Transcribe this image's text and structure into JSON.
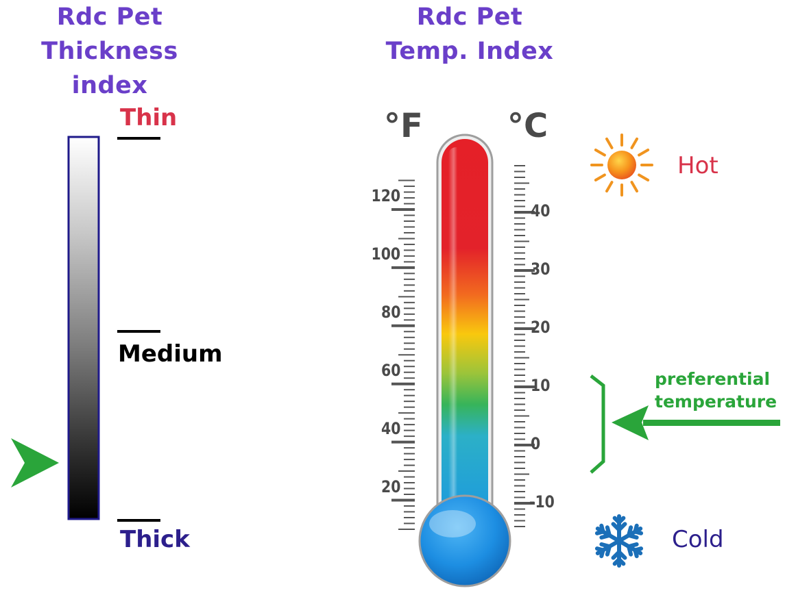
{
  "thickness": {
    "title_line1": "Rdc Pet",
    "title_line2": "Thickness index",
    "labels": {
      "thin": "Thin",
      "medium": "Medium",
      "thick": "Thick"
    },
    "indicator_level": 0.15
  },
  "temperature": {
    "title_line1": "Rdc Pet",
    "title_line2": "Temp. Index",
    "fahrenheit_unit": "°F",
    "celsius_unit": "°C",
    "fahrenheit_ticks": [
      "120",
      "100",
      "80",
      "60",
      "40",
      "20"
    ],
    "celsius_ticks": [
      "40",
      "30",
      "20",
      "10",
      "0",
      "-10"
    ],
    "hot_label": "Hot",
    "cold_label": "Cold",
    "preferential_line1": "preferential",
    "preferential_line2": "temperature",
    "icons": {
      "hot": "sun-icon",
      "cold": "snowflake-icon"
    }
  },
  "colors": {
    "title": "#6a3fc9",
    "thin": "#d8334a",
    "thick_and_cold": "#2c1f8c",
    "hot": "#d8334a",
    "accent_green": "#2aa53a",
    "mercury_top": "#e52028",
    "mercury_bottom": "#1c8fe0"
  }
}
